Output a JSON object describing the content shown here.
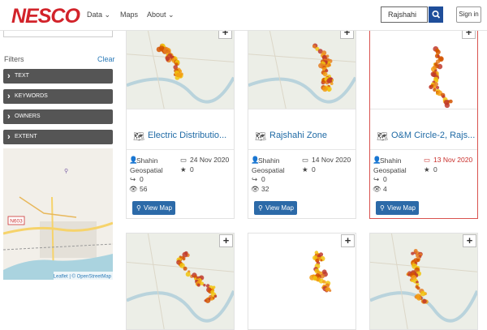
{
  "header": {
    "logo": "NESCO",
    "nav": [
      "Data",
      "Maps",
      "About"
    ],
    "search": "Rajshahi",
    "sign_in": "Sign in"
  },
  "sidebar": {
    "filters_title": "Filters",
    "clear": "Clear",
    "filters": [
      "TEXT",
      "KEYWORDS",
      "OWNERS",
      "EXTENT"
    ],
    "map_label": "N603",
    "attribution": "Leaflet | © OpenStreetMap"
  },
  "view_map": "View Map",
  "cards": [
    {
      "title": "Electric Distributio...",
      "owner": "Shahin Geospatial",
      "date": "24 Nov 2020",
      "rating": 0,
      "shares": 0,
      "views": 56
    },
    {
      "title": "Rajshahi Zone",
      "owner": "Shahin Geospatial",
      "date": "14 Nov 2020",
      "rating": 0,
      "shares": 0,
      "views": 32
    },
    {
      "title": "O&M Circle-2, Rajs...",
      "owner": "Shahin Geospatial",
      "date": "13 Nov 2020",
      "rating": 0,
      "shares": 0,
      "views": 4
    }
  ]
}
